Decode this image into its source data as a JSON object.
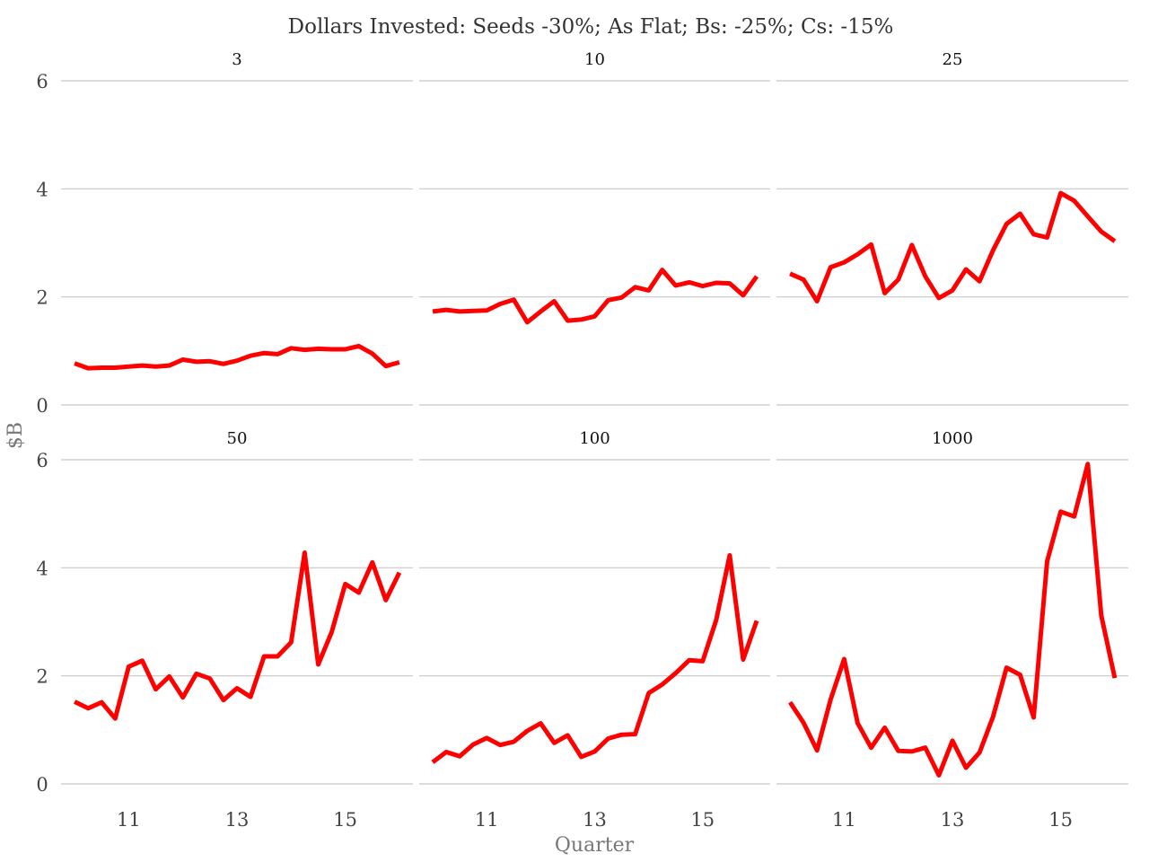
{
  "chart_data": {
    "type": "line",
    "title": "Dollars Invested: Seeds -30%; As Flat; Bs: -25%; Cs: -15%",
    "xlabel": "Quarter",
    "ylabel": "$B",
    "ylim": [
      0,
      6
    ],
    "xlim": [
      9.75,
      16.25
    ],
    "yticks": [
      0,
      2,
      4,
      6
    ],
    "xticks": [
      11,
      13,
      15
    ],
    "grid": "horizontal",
    "line_color": "#ff0000",
    "x": [
      10,
      10.25,
      10.5,
      10.75,
      11,
      11.25,
      11.5,
      11.75,
      12,
      12.25,
      12.5,
      12.75,
      13,
      13.25,
      13.5,
      13.75,
      14,
      14.25,
      14.5,
      14.75,
      15,
      15.25,
      15.5,
      15.75,
      16
    ],
    "panels": [
      {
        "label": "3",
        "values": [
          0.77,
          0.68,
          0.69,
          0.69,
          0.71,
          0.73,
          0.71,
          0.73,
          0.84,
          0.8,
          0.81,
          0.76,
          0.82,
          0.91,
          0.96,
          0.94,
          1.05,
          1.02,
          1.04,
          1.03,
          1.03,
          1.09,
          0.95,
          0.72,
          0.79
        ]
      },
      {
        "label": "10",
        "values": [
          1.73,
          1.76,
          1.73,
          1.74,
          1.75,
          1.87,
          1.95,
          1.53,
          1.73,
          1.92,
          1.56,
          1.58,
          1.64,
          1.94,
          1.99,
          2.18,
          2.12,
          2.5,
          2.21,
          2.27,
          2.2,
          2.26,
          2.25,
          2.03,
          2.38
        ]
      },
      {
        "label": "25",
        "values": [
          2.43,
          2.32,
          1.92,
          2.55,
          2.64,
          2.79,
          2.97,
          2.07,
          2.32,
          2.96,
          2.38,
          1.98,
          2.12,
          2.51,
          2.29,
          2.86,
          3.35,
          3.54,
          3.16,
          3.1,
          3.92,
          3.78,
          3.49,
          3.21,
          3.03
        ]
      },
      {
        "label": "50",
        "values": [
          1.52,
          1.4,
          1.51,
          1.21,
          2.17,
          2.28,
          1.75,
          1.99,
          1.6,
          2.04,
          1.95,
          1.55,
          1.77,
          1.61,
          2.36,
          2.36,
          2.62,
          4.28,
          2.21,
          2.81,
          3.7,
          3.54,
          4.1,
          3.4,
          3.91
        ]
      },
      {
        "label": "100",
        "values": [
          0.4,
          0.59,
          0.51,
          0.73,
          0.85,
          0.72,
          0.78,
          0.98,
          1.12,
          0.76,
          0.9,
          0.5,
          0.6,
          0.84,
          0.91,
          0.92,
          1.68,
          1.84,
          2.05,
          2.29,
          2.27,
          3.03,
          4.23,
          2.3,
          3.02
        ]
      },
      {
        "label": "1000",
        "values": [
          1.51,
          1.13,
          0.62,
          1.56,
          2.31,
          1.12,
          0.67,
          1.04,
          0.61,
          0.6,
          0.67,
          0.16,
          0.8,
          0.3,
          0.58,
          1.24,
          2.15,
          2.02,
          1.23,
          4.12,
          5.04,
          4.95,
          5.92,
          3.12,
          1.96
        ]
      }
    ]
  }
}
